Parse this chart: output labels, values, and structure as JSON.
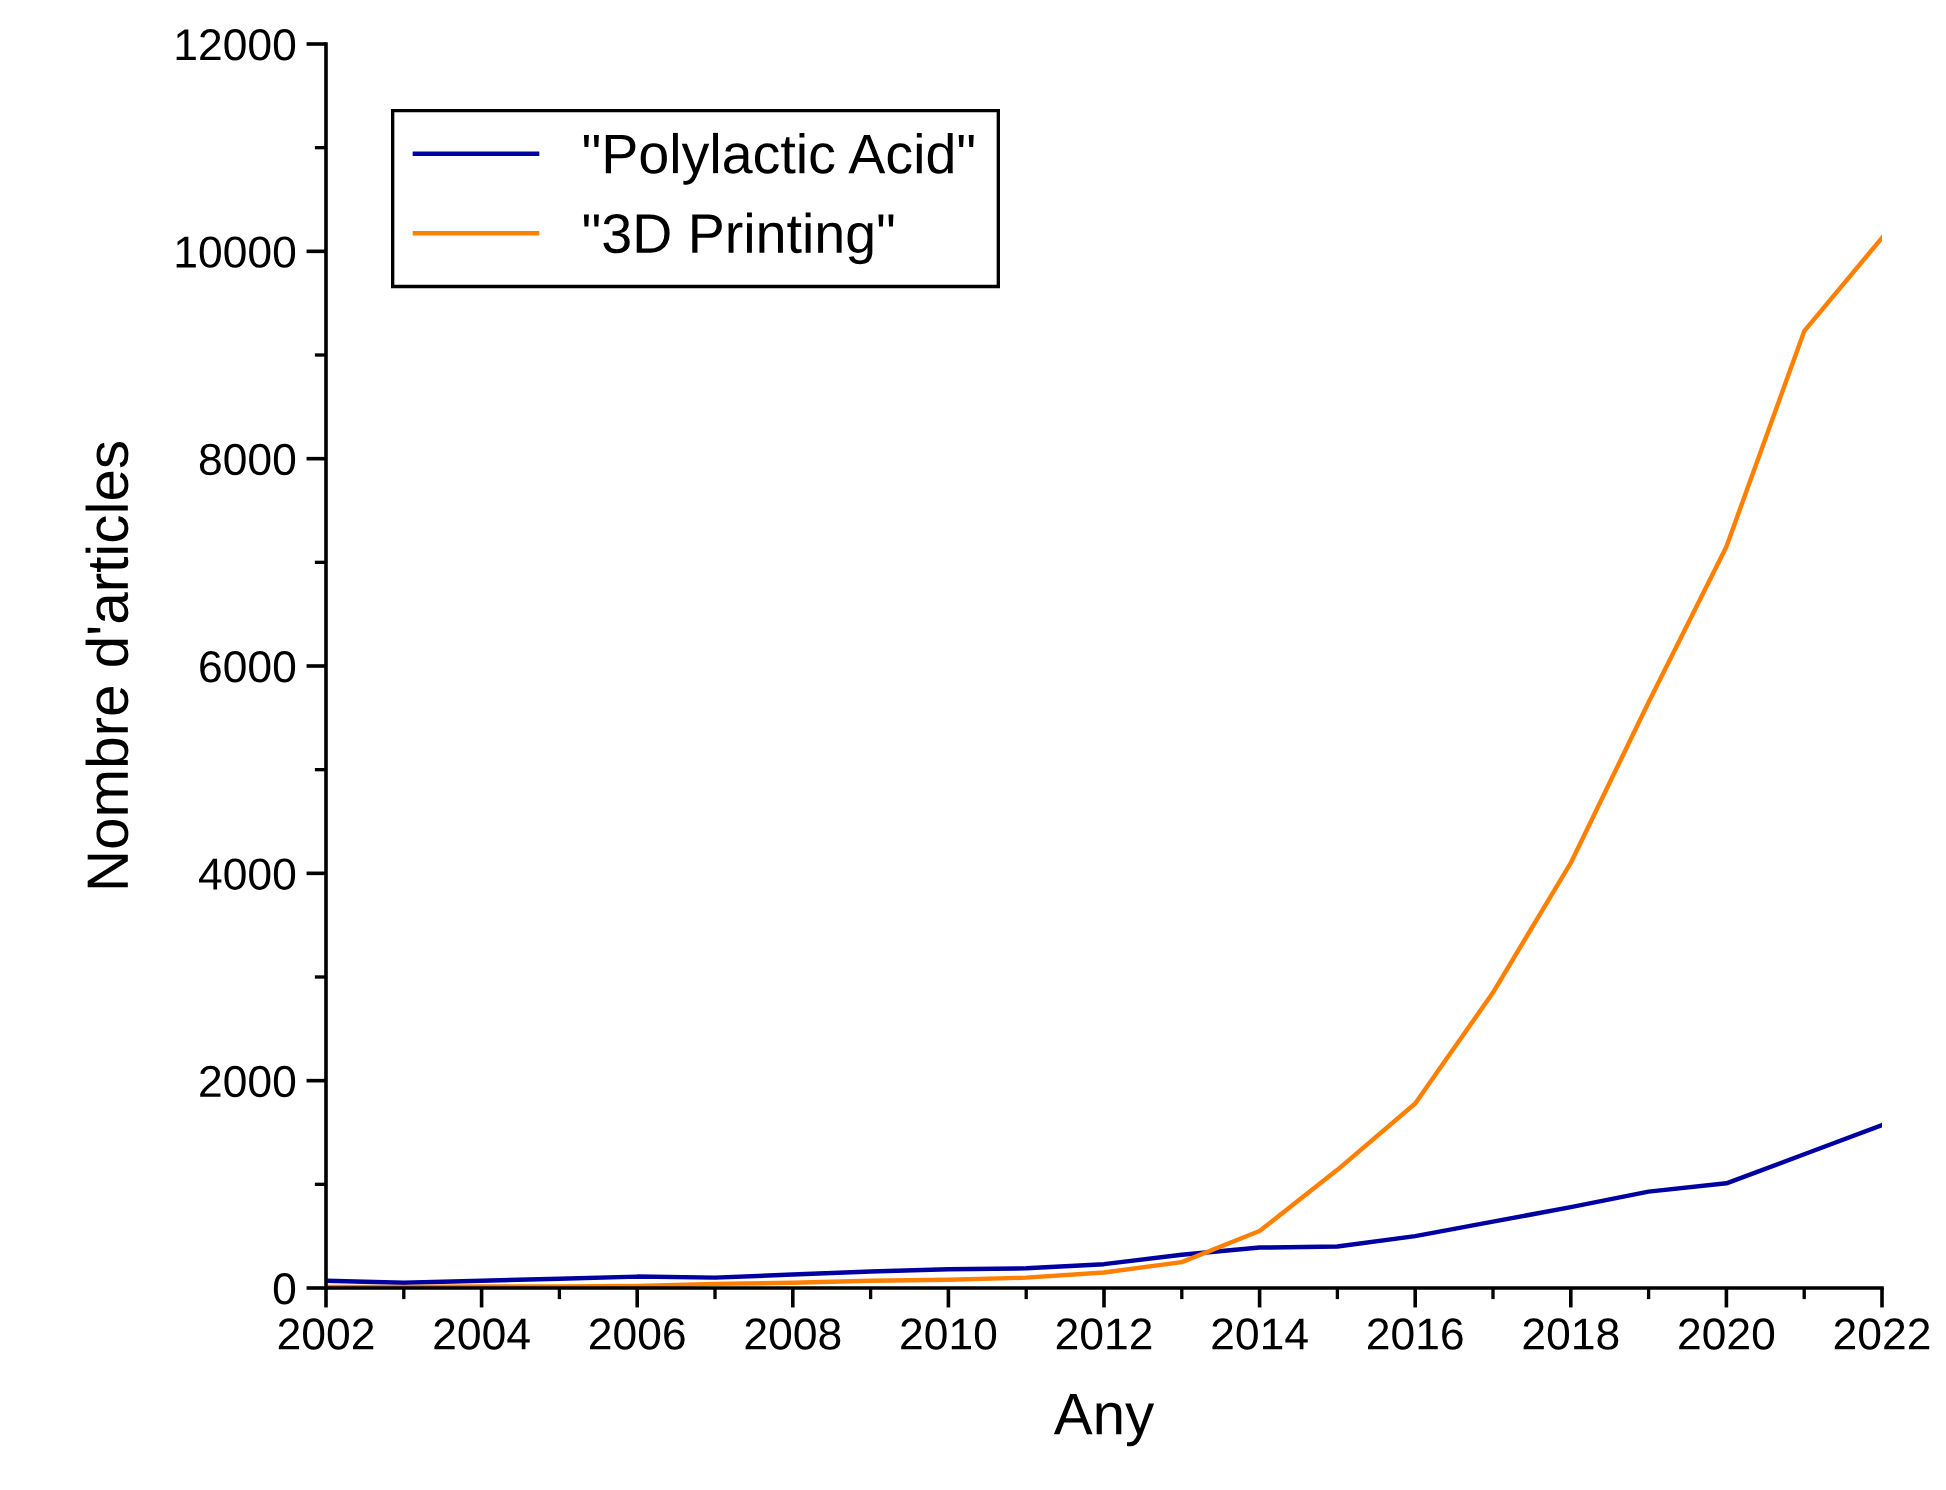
{
  "chart_data": {
    "type": "line",
    "xlabel": "Any",
    "ylabel": "Nombre d'articles",
    "x": [
      2002,
      2003,
      2004,
      2005,
      2006,
      2007,
      2008,
      2009,
      2010,
      2011,
      2012,
      2013,
      2014,
      2015,
      2016,
      2017,
      2018,
      2019,
      2020,
      2021,
      2022
    ],
    "series": [
      {
        "name": "\"Polylactic Acid\"",
        "color": "#0000a0",
        "values": [
          70,
          50,
          70,
          90,
          110,
          100,
          130,
          160,
          180,
          190,
          230,
          320,
          390,
          400,
          500,
          640,
          780,
          930,
          1010,
          1290,
          1570
        ]
      },
      {
        "name": "\"3D Printing\"",
        "color": "#ff8000",
        "values": [
          10,
          10,
          15,
          15,
          20,
          40,
          50,
          70,
          80,
          100,
          150,
          250,
          550,
          1140,
          1780,
          2850,
          4100,
          5650,
          7150,
          9230,
          10130
        ]
      }
    ],
    "xlim": [
      2002,
      2022
    ],
    "xticks": [
      2002,
      2004,
      2006,
      2008,
      2010,
      2012,
      2014,
      2016,
      2018,
      2020,
      2022
    ],
    "ylim": [
      0,
      12000
    ],
    "yticks": [
      0,
      2000,
      4000,
      6000,
      8000,
      10000,
      12000
    ],
    "grid": false,
    "legend": "top left",
    "marker": "none",
    "line_style": "solid"
  }
}
